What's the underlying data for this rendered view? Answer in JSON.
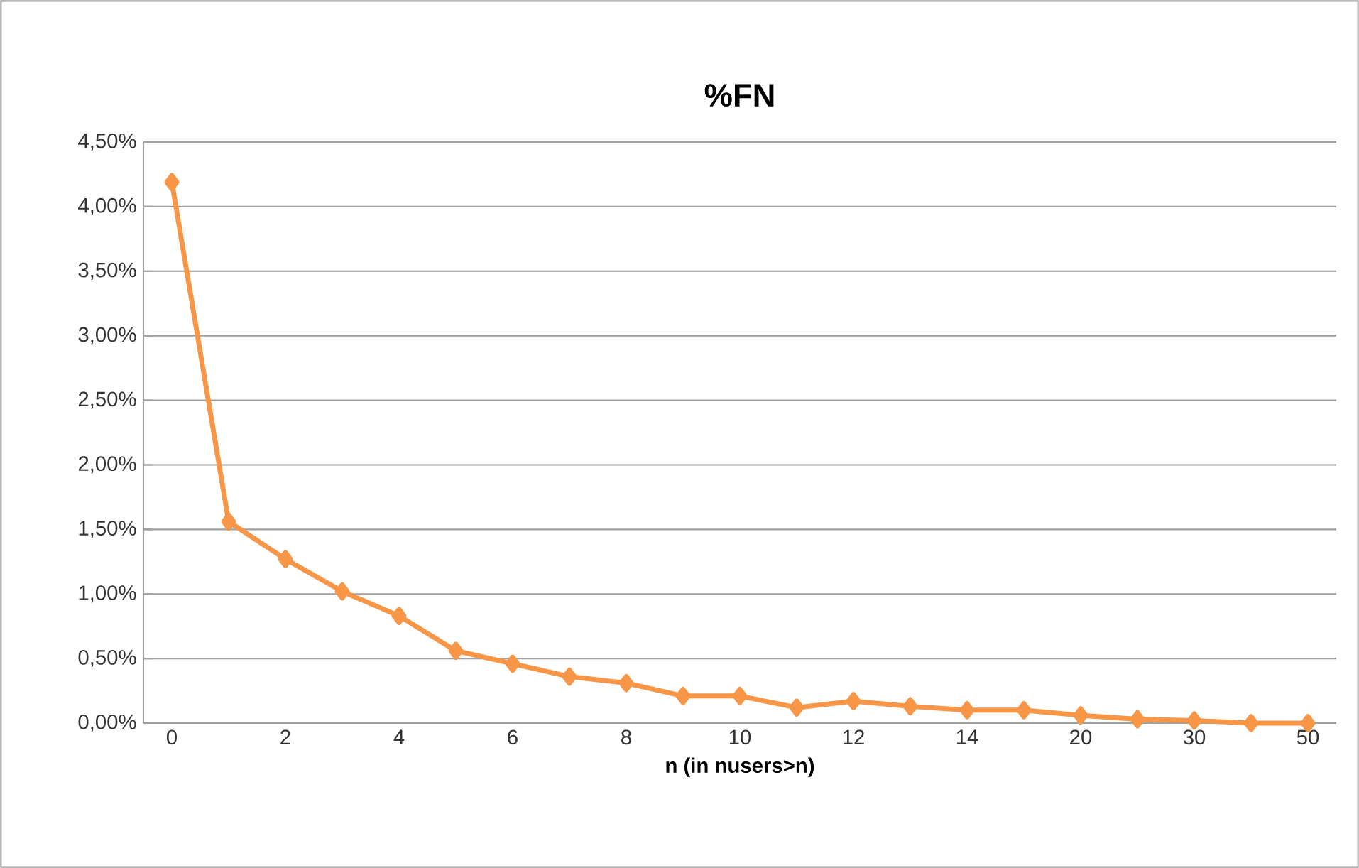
{
  "chart_data": {
    "type": "line",
    "title": "%FN",
    "xlabel": "n (in nusers>n)",
    "categories": [
      "0",
      null,
      "2",
      null,
      "4",
      null,
      "6",
      null,
      "8",
      null,
      "10",
      null,
      "12",
      null,
      "14",
      null,
      "20",
      null,
      "30",
      null,
      "50"
    ],
    "series": [
      {
        "color": "#f79646",
        "values": [
          4.19,
          1.56,
          1.27,
          1.02,
          0.83,
          0.56,
          0.46,
          0.36,
          0.31,
          0.21,
          0.21,
          0.12,
          0.17,
          0.13,
          0.1,
          0.1,
          0.06,
          0.03,
          0.02,
          0.0,
          0.0
        ]
      }
    ],
    "ylim": [
      0,
      4.5
    ],
    "yticks": [
      {
        "value": 0,
        "label": "0,00%"
      },
      {
        "value": 0.5,
        "label": "0,50%"
      },
      {
        "value": 1,
        "label": "1,00%"
      },
      {
        "value": 1.5,
        "label": "1,50%"
      },
      {
        "value": 2,
        "label": "2,00%"
      },
      {
        "value": 2.5,
        "label": "2,50%"
      },
      {
        "value": 3,
        "label": "3,00%"
      },
      {
        "value": 3.5,
        "label": "3,50%"
      },
      {
        "value": 4,
        "label": "4,00%"
      },
      {
        "value": 4.5,
        "label": "4,50%"
      }
    ],
    "grid": "y",
    "marker": "diamond",
    "line_style": "solid"
  }
}
